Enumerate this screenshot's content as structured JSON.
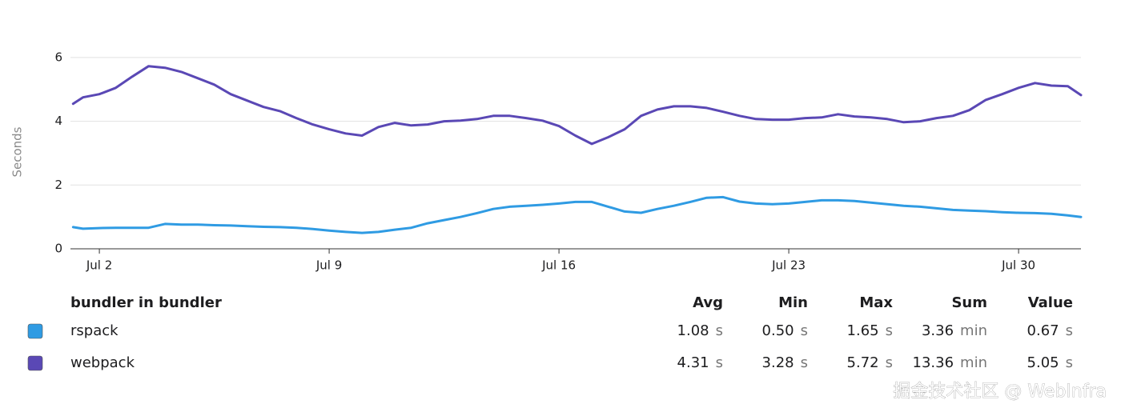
{
  "chart_data": {
    "type": "line",
    "y_label": "Seconds",
    "xlim": [
      1.12,
      31.9
    ],
    "xticks": [
      {
        "value": 2,
        "label": "Jul 2"
      },
      {
        "value": 9,
        "label": "Jul 9"
      },
      {
        "value": 16,
        "label": "Jul 16"
      },
      {
        "value": 23,
        "label": "Jul 23"
      },
      {
        "value": 30,
        "label": "Jul 30"
      }
    ],
    "ylim": [
      0,
      6.5
    ],
    "yticks": [
      0,
      2,
      4,
      6
    ],
    "grid": true,
    "x": [
      1.2,
      1.5,
      2,
      2.5,
      3,
      3.5,
      4,
      4.5,
      5,
      5.5,
      6,
      6.5,
      7,
      7.5,
      8,
      8.5,
      9,
      9.5,
      10,
      10.5,
      11,
      11.5,
      12,
      12.5,
      13,
      13.5,
      14,
      14.5,
      15,
      15.5,
      16,
      16.5,
      17,
      17.5,
      18,
      18.5,
      19,
      19.5,
      20,
      20.5,
      21,
      21.5,
      22,
      22.5,
      23,
      23.5,
      24,
      24.5,
      25,
      25.5,
      26,
      26.5,
      27,
      27.5,
      28,
      28.5,
      29,
      29.5,
      30,
      30.5,
      31,
      31.5,
      31.9
    ],
    "legend_title": "bundler in bundler",
    "stat_columns": [
      "Avg",
      "Min",
      "Max",
      "Sum",
      "Value"
    ],
    "series": [
      {
        "name": "rspack",
        "color": "#2f9be3",
        "values": [
          0.68,
          0.63,
          0.65,
          0.66,
          0.66,
          0.66,
          0.78,
          0.76,
          0.76,
          0.74,
          0.73,
          0.71,
          0.69,
          0.68,
          0.66,
          0.62,
          0.57,
          0.53,
          0.5,
          0.53,
          0.6,
          0.66,
          0.8,
          0.9,
          1.0,
          1.12,
          1.25,
          1.32,
          1.35,
          1.38,
          1.42,
          1.47,
          1.47,
          1.32,
          1.17,
          1.13,
          1.25,
          1.35,
          1.47,
          1.6,
          1.62,
          1.48,
          1.42,
          1.4,
          1.42,
          1.47,
          1.52,
          1.52,
          1.5,
          1.45,
          1.4,
          1.35,
          1.32,
          1.27,
          1.22,
          1.2,
          1.18,
          1.15,
          1.13,
          1.12,
          1.1,
          1.05,
          1.0
        ],
        "stats": [
          {
            "value": "1.08",
            "unit": "s"
          },
          {
            "value": "0.50",
            "unit": "s"
          },
          {
            "value": "1.65",
            "unit": "s"
          },
          {
            "value": "3.36",
            "unit": "min"
          },
          {
            "value": "0.67",
            "unit": "s"
          }
        ]
      },
      {
        "name": "webpack",
        "color": "#5a48b5",
        "values": [
          4.55,
          4.75,
          4.85,
          5.05,
          5.4,
          5.73,
          5.68,
          5.55,
          5.35,
          5.15,
          4.85,
          4.65,
          4.45,
          4.32,
          4.1,
          3.9,
          3.75,
          3.62,
          3.55,
          3.82,
          3.95,
          3.87,
          3.9,
          4.0,
          4.02,
          4.07,
          4.17,
          4.17,
          4.1,
          4.02,
          3.85,
          3.55,
          3.29,
          3.5,
          3.75,
          4.17,
          4.37,
          4.47,
          4.47,
          4.42,
          4.3,
          4.17,
          4.07,
          4.05,
          4.05,
          4.1,
          4.12,
          4.22,
          4.15,
          4.12,
          4.07,
          3.97,
          4.0,
          4.1,
          4.17,
          4.35,
          4.67,
          4.85,
          5.05,
          5.2,
          5.12,
          5.1,
          4.82
        ],
        "stats": [
          {
            "value": "4.31",
            "unit": "s"
          },
          {
            "value": "3.28",
            "unit": "s"
          },
          {
            "value": "5.72",
            "unit": "s"
          },
          {
            "value": "13.36",
            "unit": "min"
          },
          {
            "value": "5.05",
            "unit": "s"
          }
        ]
      }
    ],
    "watermark": "掘金技术社区 @ WebInfra"
  }
}
